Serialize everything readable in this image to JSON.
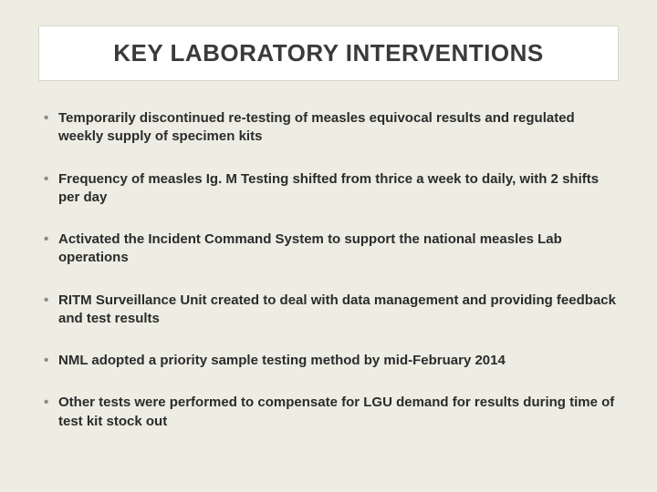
{
  "slide": {
    "background_color": "#eeede3",
    "title_box": {
      "background_color": "#ffffff",
      "border_color": "#d8d6ca",
      "text": "KEY LABORATORY INTERVENTIONS",
      "font_size": 26,
      "font_color": "#3a3a38"
    },
    "bullets": {
      "bullet_color": "#8a8a80",
      "text_color": "#2b2b2b",
      "font_size": 15,
      "font_weight": "bold",
      "items": [
        "Temporarily discontinued re-testing of measles equivocal results and regulated weekly supply of specimen kits",
        "Frequency of measles Ig. M Testing shifted from thrice a week to daily, with 2 shifts per day",
        "Activated the Incident Command System to support the national measles Lab operations",
        "RITM Surveillance Unit created to deal with data management and providing feedback and test results",
        "NML adopted a priority sample testing method by mid-February 2014",
        "Other tests were performed to compensate for LGU demand for results during time of test kit stock out"
      ]
    }
  }
}
